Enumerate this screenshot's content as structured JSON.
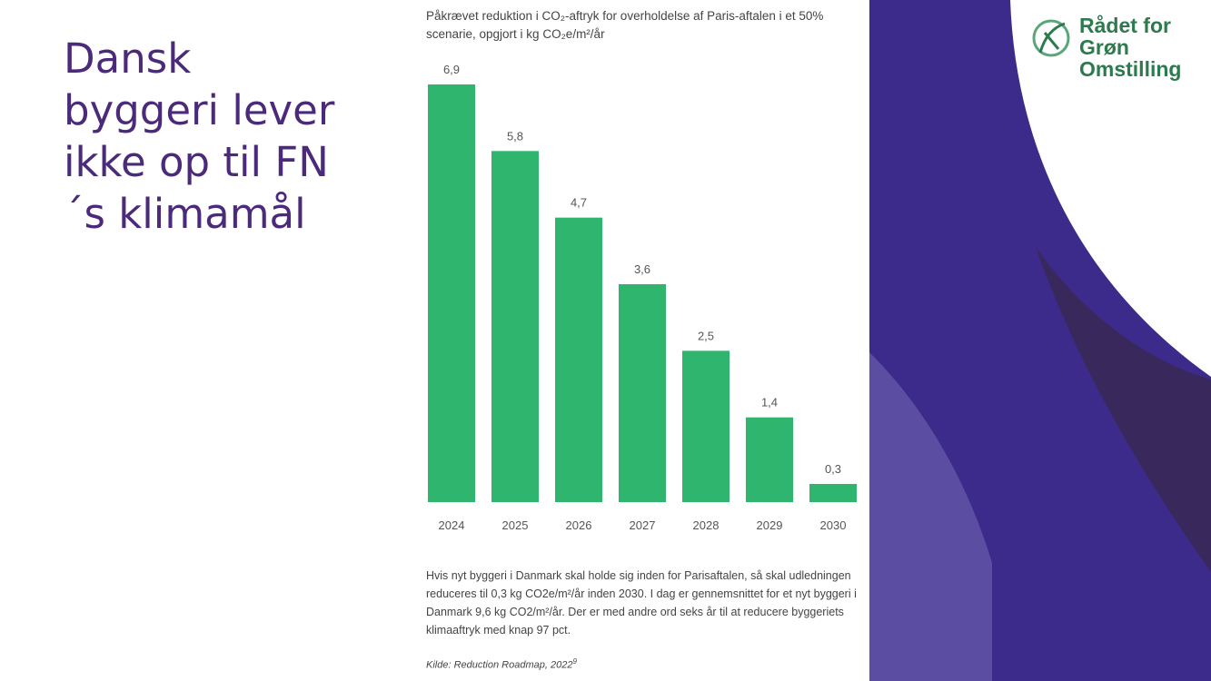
{
  "slide": {
    "heading": "Dansk byggeri lever ikke op til FN´s klimamål",
    "logo": "Rådet for Grøn Omstilling"
  },
  "chart_data": {
    "type": "bar",
    "title": "Påkrævet reduktion i CO₂-aftryk for overholdelse af Paris-aftalen i et 50% scenarie, opgjort i kg CO₂e/m²/år",
    "categories": [
      "2024",
      "2025",
      "2026",
      "2027",
      "2028",
      "2029",
      "2030"
    ],
    "values": [
      6.9,
      5.8,
      4.7,
      3.6,
      2.5,
      1.4,
      0.3
    ],
    "value_labels": [
      "6,9",
      "5,8",
      "4,7",
      "3,6",
      "2,5",
      "1,4",
      "0,3"
    ],
    "color": "#2fb56d",
    "ylim": [
      0,
      6.9
    ]
  },
  "caption": "Hvis nyt byggeri i Danmark skal holde sig inden for Parisaftalen, så skal udledningen reduceres til 0,3 kg CO2e/m²/år inden 2030. I dag er gennemsnittet for et nyt byggeri i Danmark 9,6 kg CO2/m²/år. Der er med andre ord seks år til at reducere byggeriets klimaaftryk med knap 97 pct.",
  "source": {
    "text": "Kilde: Reduction Roadmap, 2022",
    "footnote": "9"
  }
}
